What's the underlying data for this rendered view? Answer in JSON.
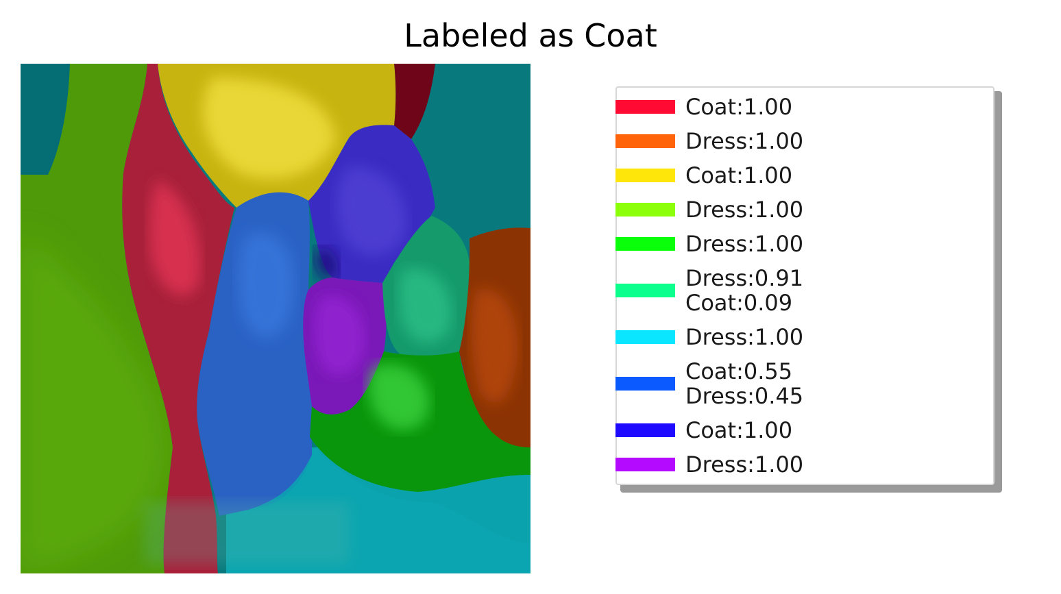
{
  "title": "Labeled as Coat",
  "legend": {
    "entries": [
      {
        "color": "#ff0a32",
        "lines": [
          "Coat:1.00"
        ]
      },
      {
        "color": "#ff640a",
        "lines": [
          "Dress:1.00"
        ]
      },
      {
        "color": "#ffe60a",
        "lines": [
          "Coat:1.00"
        ]
      },
      {
        "color": "#8cff0a",
        "lines": [
          "Dress:1.00"
        ]
      },
      {
        "color": "#0aff0a",
        "lines": [
          "Dress:1.00"
        ]
      },
      {
        "color": "#0aff8c",
        "lines": [
          "Dress:0.91",
          "Coat:0.09"
        ]
      },
      {
        "color": "#0ae6ff",
        "lines": [
          "Dress:1.00"
        ]
      },
      {
        "color": "#0a5aff",
        "lines": [
          "Coat:0.55",
          "Dress:0.45"
        ]
      },
      {
        "color": "#1e0aff",
        "lines": [
          "Coat:1.00"
        ]
      },
      {
        "color": "#b40aff",
        "lines": [
          "Dress:1.00"
        ]
      }
    ]
  }
}
